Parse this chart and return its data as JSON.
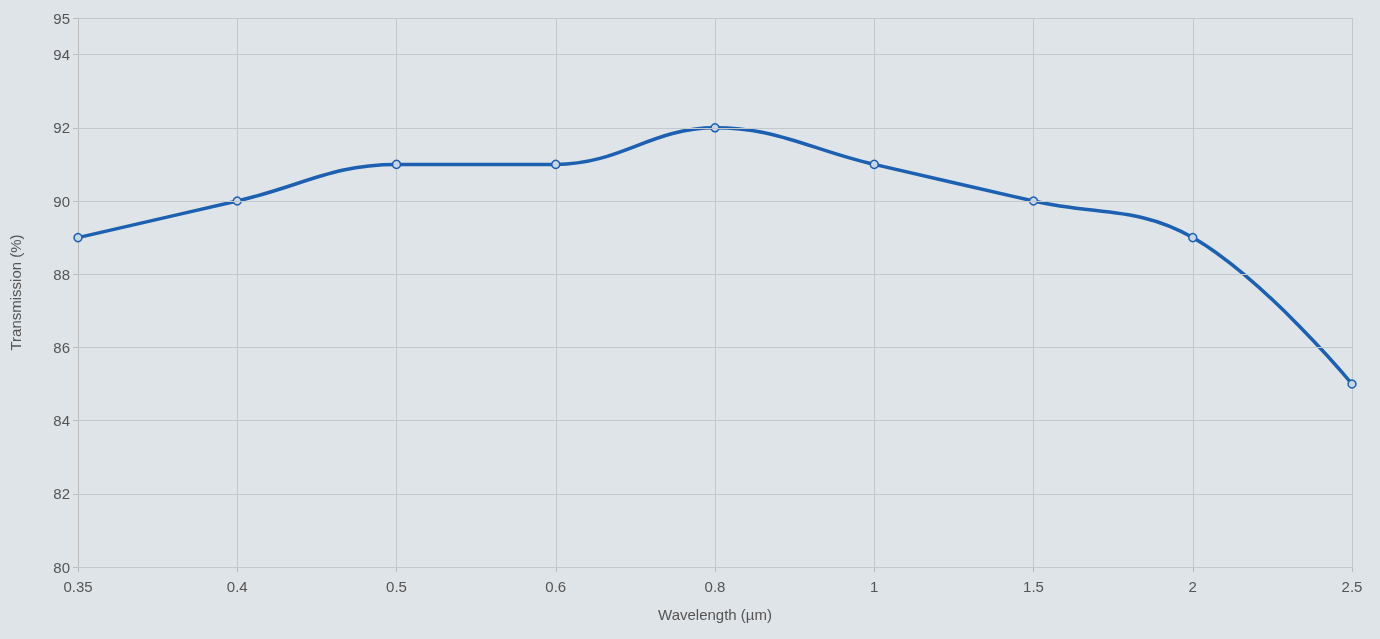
{
  "chart_data": {
    "type": "line",
    "xlabel": "Wavelength (µm)",
    "ylabel": "Transmission (%)",
    "categories": [
      "0.35",
      "0.4",
      "0.5",
      "0.6",
      "0.8",
      "1",
      "1.5",
      "2",
      "2.5"
    ],
    "series": [
      {
        "color": "#1d5fb0",
        "values": [
          89,
          90,
          91,
          91,
          92,
          91,
          90,
          89,
          85
        ]
      }
    ],
    "ylim": [
      80,
      95
    ],
    "yticks": [
      80,
      82,
      84,
      86,
      88,
      90,
      92,
      94,
      95
    ],
    "grid": true,
    "marker": "circle",
    "line_style": "solid"
  }
}
